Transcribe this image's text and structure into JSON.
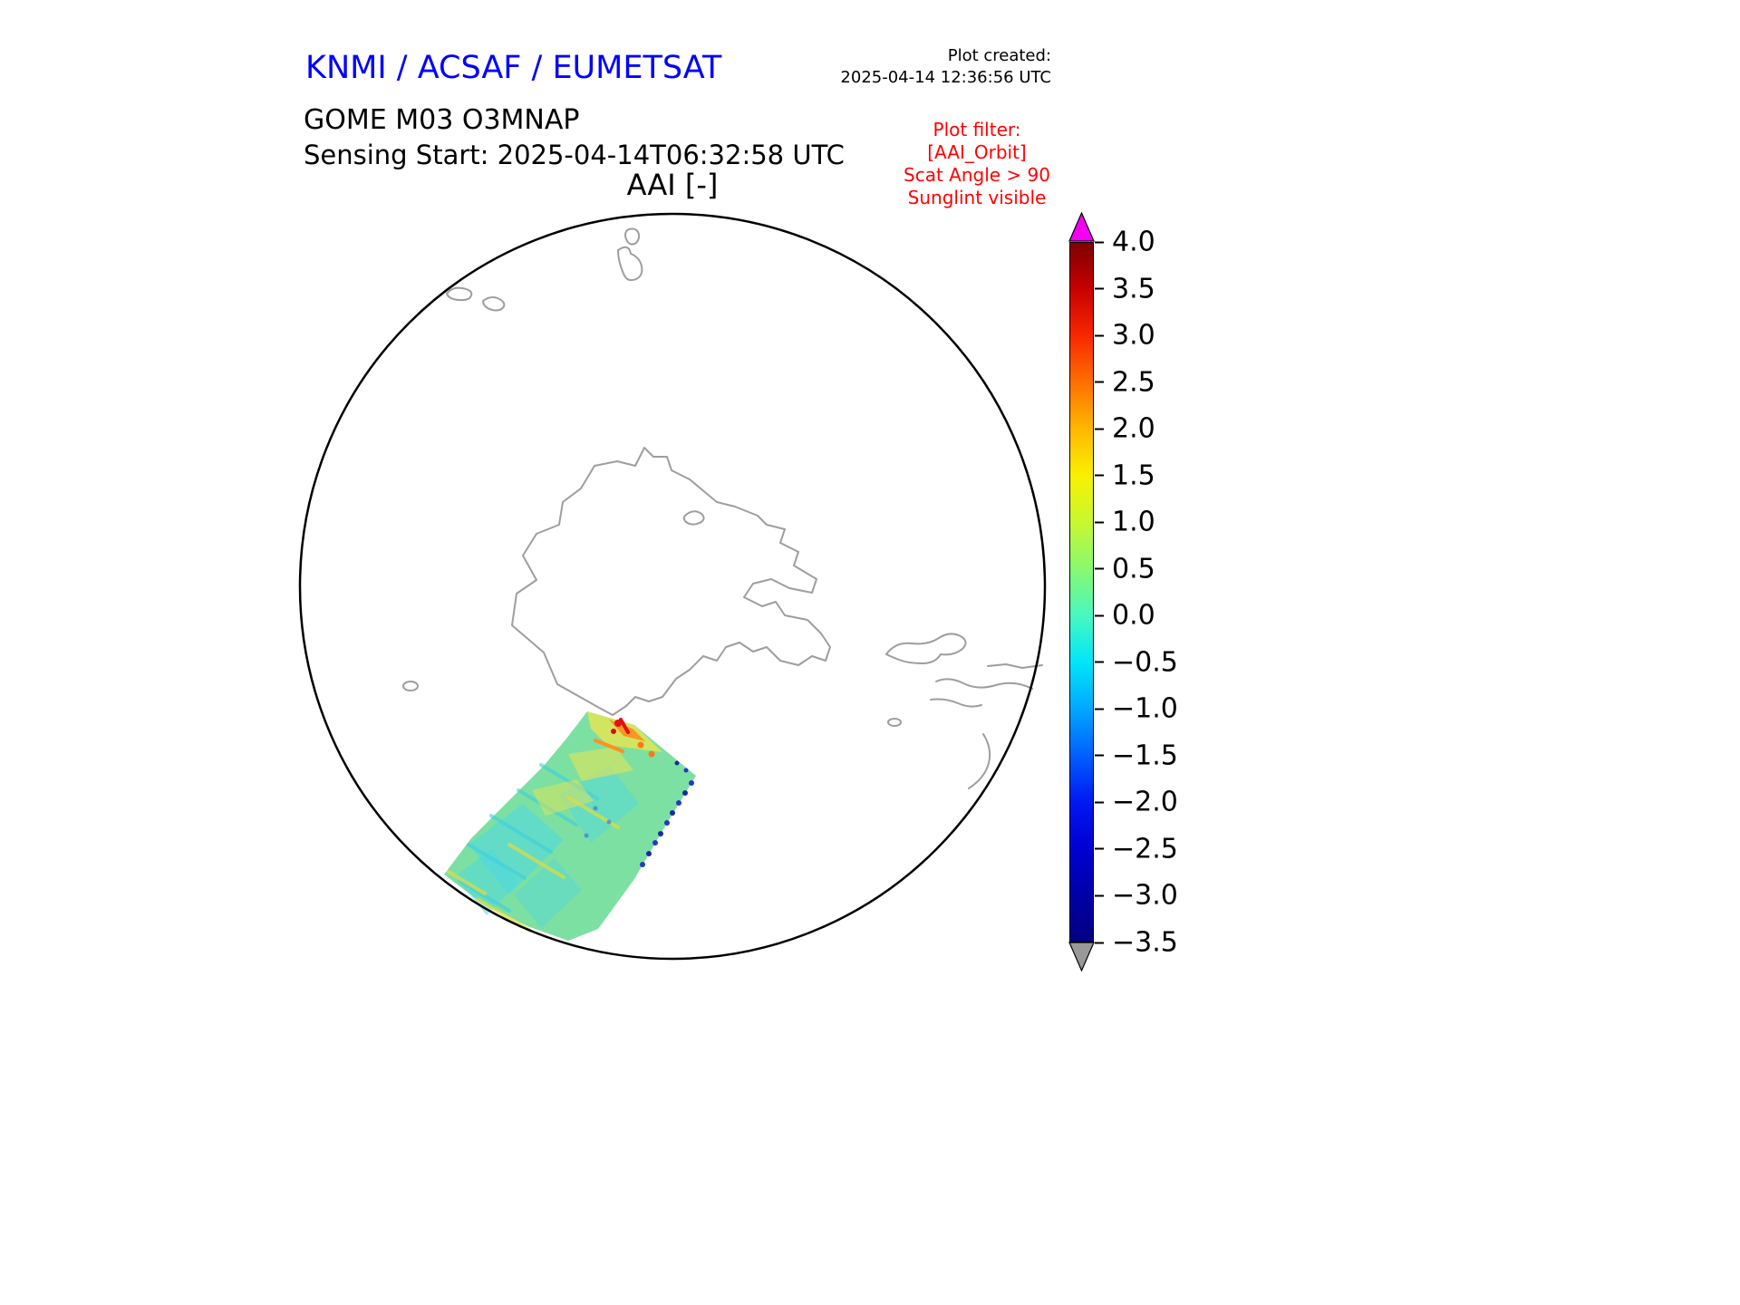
{
  "figure": {
    "title": "KNMI / ACSAF / EUMETSAT",
    "title_color": "#0000ff",
    "created": {
      "label": "Plot created:",
      "timestamp": "2025-04-14 12:36:56 UTC"
    },
    "product": "GOME M03 O3MNAP",
    "sensing_start": "Sensing Start: 2025-04-14T06:32:58 UTC",
    "map_title": "AAI [-]"
  },
  "plot_filter": {
    "color": "#ff0000",
    "lines": [
      "Plot filter:",
      "[AAI_Orbit]",
      "Scat Angle > 90",
      "Sunglint visible"
    ]
  },
  "colorbar": {
    "min": -3.5,
    "max": 4.0,
    "tick_step": 0.5,
    "ticks": [
      "4.0",
      "3.5",
      "3.0",
      "2.5",
      "2.0",
      "1.5",
      "1.0",
      "0.5",
      "0.0",
      "−0.5",
      "−1.0",
      "−1.5",
      "−2.0",
      "−2.5",
      "−3.0",
      "−3.5"
    ],
    "over_arrow_color": "#f400f4",
    "under_arrow_color": "#999999",
    "stops": [
      {
        "value": -3.5,
        "color": "#000080"
      },
      {
        "value": -3.0,
        "color": "#0000a8"
      },
      {
        "value": -2.5,
        "color": "#0000d2"
      },
      {
        "value": -2.0,
        "color": "#0018f2"
      },
      {
        "value": -1.5,
        "color": "#0060ff"
      },
      {
        "value": -1.0,
        "color": "#00a8ff"
      },
      {
        "value": -0.5,
        "color": "#00e6f8"
      },
      {
        "value": 0.0,
        "color": "#48f8c0"
      },
      {
        "value": 0.5,
        "color": "#88f870"
      },
      {
        "value": 1.0,
        "color": "#c8f830"
      },
      {
        "value": 1.5,
        "color": "#f8f000"
      },
      {
        "value": 2.0,
        "color": "#ffb800"
      },
      {
        "value": 2.5,
        "color": "#ff7000"
      },
      {
        "value": 3.0,
        "color": "#f82800"
      },
      {
        "value": 3.5,
        "color": "#c80000"
      },
      {
        "value": 4.0,
        "color": "#7f0000"
      }
    ]
  },
  "map": {
    "projection": "south-polar view (Antarctica centered)",
    "outline_color": "#000000",
    "coastline_color": "#9e9e9e",
    "swath_base_color": "#7ce0a2"
  },
  "chart_data": {
    "type": "heatmap",
    "title": "AAI [-]",
    "subtitle": "GOME M03 O3MNAP — Sensing Start: 2025-04-14T06:32:58 UTC",
    "colorbar_label": "AAI [-]",
    "colorbar_range": [
      -3.5,
      4.0
    ],
    "colorbar_ticks": [
      4.0,
      3.5,
      3.0,
      2.5,
      2.0,
      1.5,
      1.0,
      0.5,
      0.0,
      -0.5,
      -1.0,
      -1.5,
      -2.0,
      -2.5,
      -3.0,
      -3.5
    ],
    "legend_position": "right",
    "grid": false,
    "data_note": "Single satellite swath over the Southern Ocean southwest of the Antarctic Peninsula; AAI values mostly between -1.0 and 1.5 (green/cyan), with yellow-orange streaks up to ~2.5 and isolated red pixels ~3.0-3.5 near the swath's northern end, and dark blue pixels (~ -2 to -3) along the eastern swath edge"
  }
}
